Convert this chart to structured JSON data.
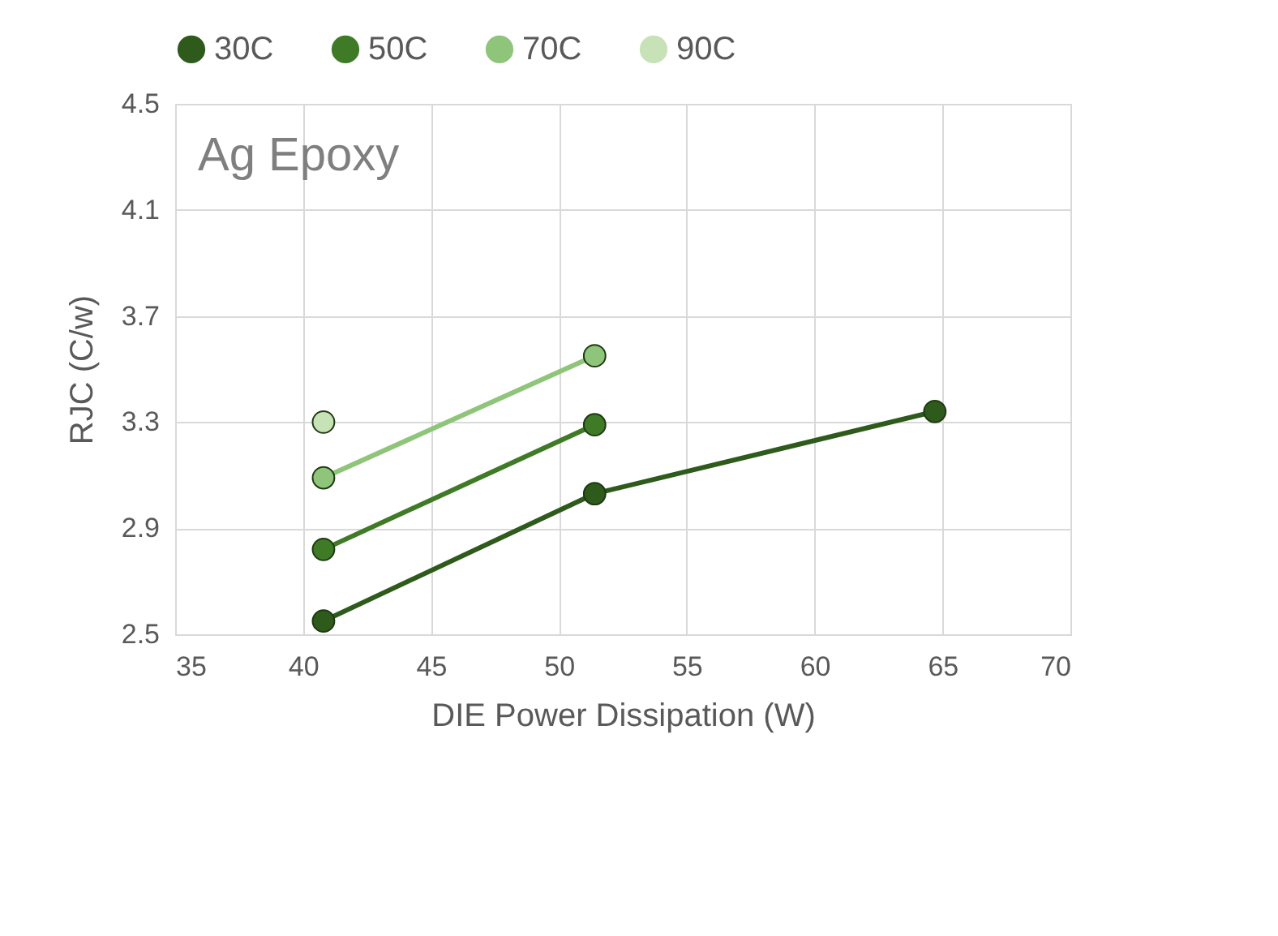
{
  "chart_data": {
    "type": "line",
    "xlabel": "DIE Power Dissipation (W)",
    "ylabel": "RJC (C/w)",
    "annotations": [
      "Ag Epoxy"
    ],
    "series": [
      {
        "name": "30C",
        "color": "#2e5a1c",
        "x": [
          40.8,
          51.4,
          64.7
        ],
        "values": [
          2.55,
          3.03,
          3.34
        ]
      },
      {
        "name": "50C",
        "color": "#3f7b27",
        "x": [
          40.8,
          51.4
        ],
        "values": [
          2.82,
          3.29
        ]
      },
      {
        "name": "70C",
        "color": "#8fc57a",
        "x": [
          40.8,
          51.4
        ],
        "values": [
          3.09,
          3.55
        ]
      },
      {
        "name": "90C",
        "color": "#c8e2b8",
        "x": [
          40.8
        ],
        "values": [
          3.3
        ]
      }
    ],
    "xlim": [
      35,
      70
    ],
    "xticks": [
      35,
      40,
      45,
      50,
      55,
      60,
      65,
      70
    ],
    "ylim": [
      2.5,
      4.5
    ],
    "yticks": [
      2.5,
      2.9,
      3.3,
      3.7,
      4.1,
      4.5
    ],
    "grid": true,
    "legend": "top",
    "marker": "circle",
    "line_style": "solid"
  }
}
